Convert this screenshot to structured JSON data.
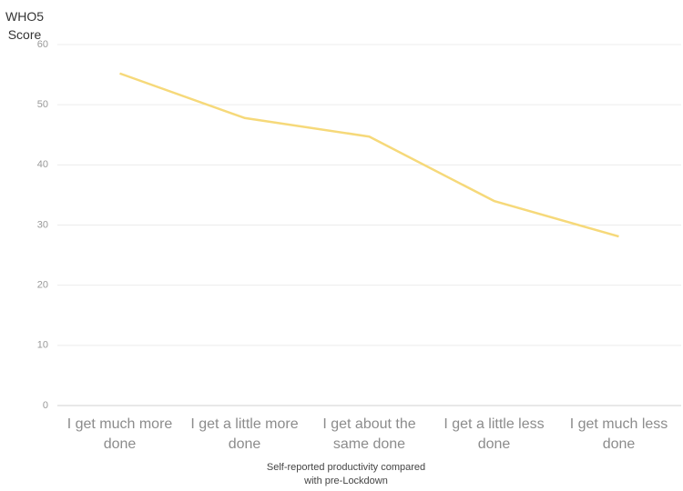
{
  "chart_data": {
    "type": "line",
    "y_label": "WHO5 Score",
    "x_label": "Self-reported productivity compared with pre-Lockdown",
    "categories": [
      "I get much more done",
      "I get a little more done",
      "I get about the same done",
      "I get a little less done",
      "I get much less done"
    ],
    "series": [
      {
        "name": "WHO5 Score",
        "color": "#f6d97a",
        "values": [
          55.2,
          47.8,
          44.7,
          34.0,
          28.1
        ]
      }
    ],
    "ylim": [
      0,
      60
    ],
    "yticks": [
      0,
      10,
      20,
      30,
      40,
      50,
      60
    ],
    "grid": true
  }
}
